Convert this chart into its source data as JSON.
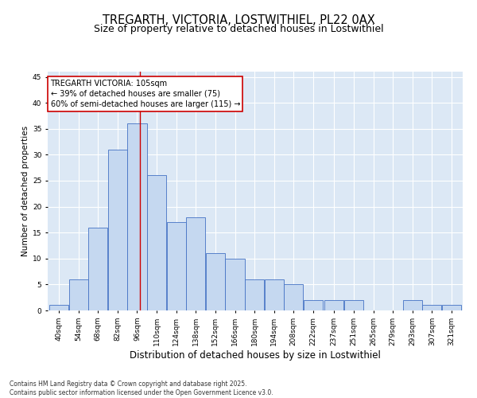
{
  "title": "TREGARTH, VICTORIA, LOSTWITHIEL, PL22 0AX",
  "subtitle": "Size of property relative to detached houses in Lostwithiel",
  "xlabel": "Distribution of detached houses by size in Lostwithiel",
  "ylabel": "Number of detached properties",
  "bins": [
    40,
    54,
    68,
    82,
    96,
    110,
    124,
    138,
    152,
    166,
    180,
    194,
    208,
    222,
    237,
    251,
    265,
    279,
    293,
    307,
    321
  ],
  "counts": [
    1,
    6,
    16,
    31,
    36,
    26,
    17,
    18,
    11,
    10,
    6,
    6,
    5,
    2,
    2,
    2,
    0,
    0,
    2,
    1,
    1
  ],
  "bar_color": "#c5d8f0",
  "bar_edge_color": "#4472c4",
  "vline_x": 105,
  "vline_color": "#cc0000",
  "annotation_line1": "TREGARTH VICTORIA: 105sqm",
  "annotation_line2": "← 39% of detached houses are smaller (75)",
  "annotation_line3": "60% of semi-detached houses are larger (115) →",
  "annotation_box_color": "#cc0000",
  "annotation_text_fontsize": 7,
  "ylim": [
    0,
    46
  ],
  "yticks": [
    0,
    5,
    10,
    15,
    20,
    25,
    30,
    35,
    40,
    45
  ],
  "background_color": "#dce8f5",
  "grid_color": "#ffffff",
  "footer_line1": "Contains HM Land Registry data © Crown copyright and database right 2025.",
  "footer_line2": "Contains public sector information licensed under the Open Government Licence v3.0.",
  "title_fontsize": 10.5,
  "subtitle_fontsize": 9,
  "xlabel_fontsize": 8.5,
  "ylabel_fontsize": 7.5,
  "tick_fontsize": 6.5
}
